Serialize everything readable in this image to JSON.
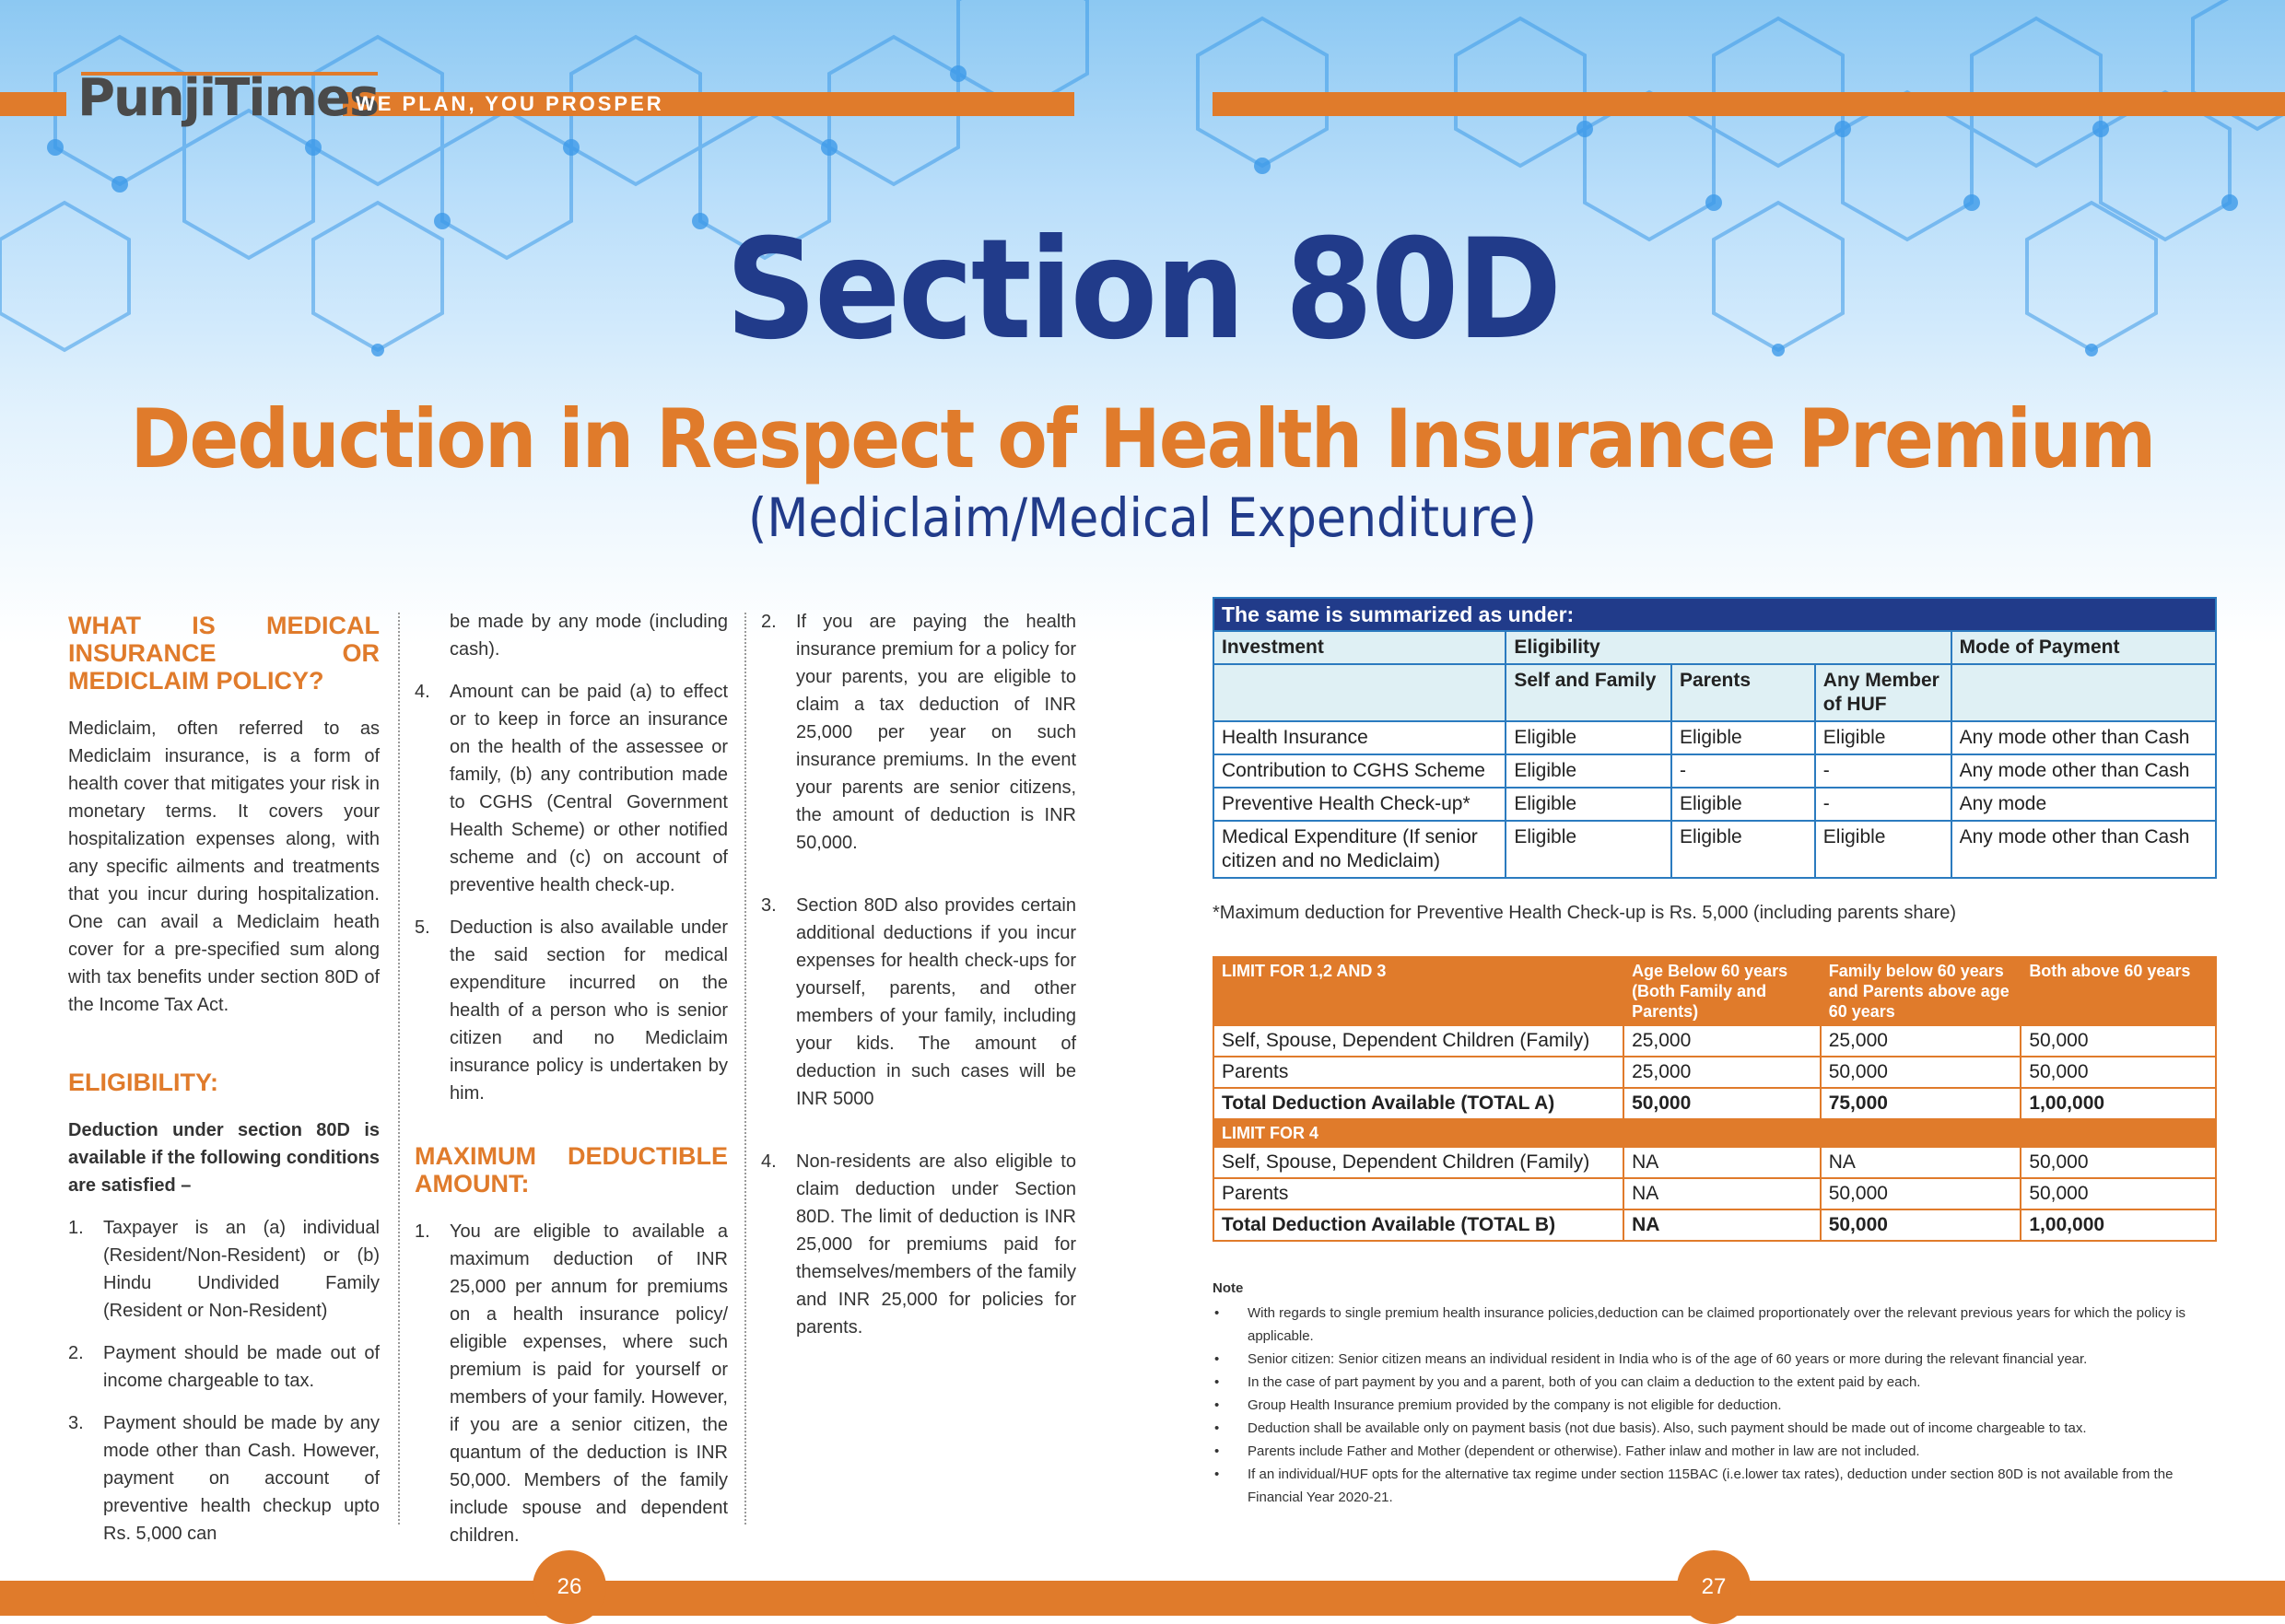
{
  "brand": {
    "logo": "PunjiTimes",
    "tagline": "WE PLAN, YOU PROSPER"
  },
  "header": {
    "title": "Section 80D",
    "subtitle": "Deduction in Respect of Health Insurance Premium",
    "subtitle2": "(Mediclaim/Medical Expenditure)"
  },
  "col1": {
    "h1": "WHAT IS MEDICAL INSURANCE OR MEDICLAIM POLICY?",
    "p1": "Mediclaim, often referred to as Mediclaim insurance, is a form of health cover that mitigates your risk in monetary terms. It covers your hospitalization expenses along, with any specific ailments and treatments that you incur during hospitalization. One can avail a Mediclaim heath cover for a pre-specified sum along with tax benefits under section 80D of the Income Tax Act.",
    "h2": "ELIGIBILITY:",
    "lead": "Deduction under section 80D is available if the following conditions are satisfied –",
    "items": [
      {
        "n": "1.",
        "t": "Taxpayer is an (a) individual (Resident/Non-Resident) or (b) Hindu Undivided Family (Resident or Non-Resident)"
      },
      {
        "n": "2.",
        "t": "Payment should be made out of income chargeable to tax."
      },
      {
        "n": "3.",
        "t": "Payment should be made by any mode other than Cash. However, payment on account of preventive health checkup upto Rs. 5,000 can"
      }
    ]
  },
  "col2": {
    "cont": "be made by any mode (including cash).",
    "items": [
      {
        "n": "4.",
        "t": "Amount can be paid (a) to effect or to keep in force an insurance on the health of the assessee or family, (b) any contribution made to CGHS (Central Government Health Scheme) or other notified scheme and (c) on account of preventive health check-up."
      },
      {
        "n": "5.",
        "t": "Deduction is also available under the said section for medical expenditure incurred on the health of a person who is senior citizen and no Mediclaim insurance policy is undertaken by him."
      }
    ],
    "h": "MAXIMUM DEDUCTIBLE AMOUNT:",
    "items2": [
      {
        "n": "1.",
        "t": "You are eligible to available a maximum deduction of INR 25,000 per annum for premiums on a health insurance policy/ eligible expenses, where such premium is paid for yourself or members of your family. However, if you are a senior citizen, the quantum of the deduction is INR 50,000. Members of the family include spouse and dependent children."
      }
    ]
  },
  "col3": {
    "items": [
      {
        "n": "2.",
        "t": "If you are paying the health insurance premium for a policy for your parents, you are eligible to claim a tax deduction of INR 25,000 per year on such insurance premiums. In the event your parents are senior citizens, the amount of deduction is INR 50,000."
      },
      {
        "n": "3.",
        "t": "Section 80D also provides certain additional deductions if you incur expenses for health check-ups for yourself, parents, and other members of your family, including your kids. The amount of deduction in such cases will be INR 5000"
      },
      {
        "n": "4.",
        "t": "Non-residents are also eligible to claim deduction under Section 80D. The limit of deduction is INR 25,000 for premiums paid for themselves/members of the family and INR 25,000 for policies for parents."
      }
    ]
  },
  "table1": {
    "caption": "The same is summarized as under:",
    "h_investment": "Investment",
    "h_eligibility": "Eligibility",
    "h_mode": "Mode of Payment",
    "sub": [
      "Self and Family",
      "Parents",
      "Any Member of HUF"
    ],
    "rows": [
      [
        "Health Insurance",
        "Eligible",
        "Eligible",
        "Eligible",
        "Any mode other than Cash"
      ],
      [
        "Contribution to CGHS Scheme",
        "Eligible",
        "-",
        "-",
        "Any mode other than Cash"
      ],
      [
        "Preventive Health Check-up*",
        "Eligible",
        "Eligible",
        "-",
        "Any mode"
      ],
      [
        "Medical Expenditure (If senior citizen and no Mediclaim)",
        "Eligible",
        "Eligible",
        "Eligible",
        "Any mode other than Cash"
      ]
    ],
    "footnote": "*Maximum deduction for Preventive Health Check-up is Rs. 5,000 (including parents share)"
  },
  "table2": {
    "head": [
      "LIMIT FOR 1,2 AND 3",
      "Age Below 60 years (Both Family and Parents)",
      "Family below 60 years and Parents above age 60 years",
      "Both above 60 years"
    ],
    "rowsA": [
      [
        "Self, Spouse, Dependent Children (Family)",
        "25,000",
        "25,000",
        "50,000"
      ],
      [
        "Parents",
        "25,000",
        "50,000",
        "50,000"
      ]
    ],
    "totalA": [
      "Total Deduction Available (TOTAL A)",
      "50,000",
      "75,000",
      "1,00,000"
    ],
    "head2": "LIMIT FOR 4",
    "rowsB": [
      [
        "Self, Spouse, Dependent Children (Family)",
        "NA",
        "NA",
        "50,000"
      ],
      [
        "Parents",
        "NA",
        "50,000",
        "50,000"
      ]
    ],
    "totalB": [
      "Total Deduction Available (TOTAL B)",
      "NA",
      "50,000",
      "1,00,000"
    ]
  },
  "notes": {
    "title": "Note",
    "items": [
      "With regards to single premium health insurance policies,deduction can be claimed proportionately over the relevant previous years for which the policy is applicable.",
      "Senior citizen: Senior citizen means an individual resident in India who is of the age of 60 years or more during the relevant financial year.",
      "In the case of part payment by you and a parent, both of you can claim a deduction to the extent paid by each.",
      "Group Health Insurance premium provided by the company is not eligible for deduction.",
      "Deduction shall be available only on payment basis (not due basis). Also, such payment should be made out of income chargeable to tax.",
      "Parents include Father and Mother (dependent or otherwise). Father inlaw and mother in law are not included.",
      "If an individual/HUF opts for the alternative tax regime under section 115BAC (i.e.lower tax rates), deduction under section 80D is not available from the Financial Year 2020-21."
    ]
  },
  "pages": {
    "left": "26",
    "right": "27"
  },
  "colors": {
    "orange": "#e07b2b",
    "navy": "#213b8a",
    "table_border": "#2b7bbf"
  }
}
